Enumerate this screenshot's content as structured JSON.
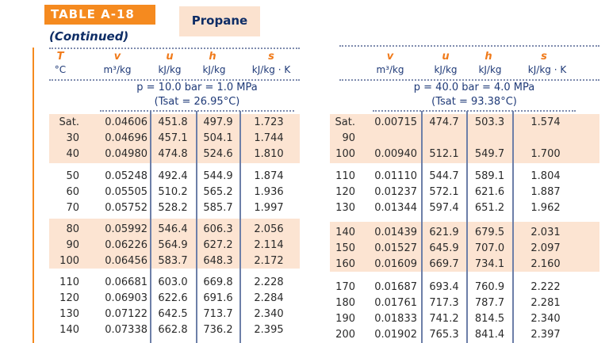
{
  "title_label": "TABLE A-18",
  "substance": "Propane",
  "continued": "(Continued)",
  "left_headers": {
    "T": "T",
    "v": "v",
    "u": "u",
    "h": "h",
    "s": "s",
    "T_unit": "°C",
    "v_unit": "m³/kg",
    "u_unit": "kJ/kg",
    "h_unit": "kJ/kg",
    "s_unit": "kJ/kg · K"
  },
  "right_headers": {
    "v": "v",
    "u": "u",
    "h": "h",
    "s": "s",
    "v_unit": "m³/kg",
    "u_unit": "kJ/kg",
    "h_unit": "kJ/kg",
    "s_unit": "kJ/kg · K"
  },
  "left_block": {
    "pressure": "p = 10.0 bar = 1.0 MPa",
    "tsat": "(Tsat = 26.95°C)",
    "rows": [
      [
        "Sat.",
        "0.04606",
        "451.8",
        "497.9",
        "1.723"
      ],
      [
        "30",
        "0.04696",
        "457.1",
        "504.1",
        "1.744"
      ],
      [
        "40",
        "0.04980",
        "474.8",
        "524.6",
        "1.810"
      ],
      [
        "50",
        "0.05248",
        "492.4",
        "544.9",
        "1.874"
      ],
      [
        "60",
        "0.05505",
        "510.2",
        "565.2",
        "1.936"
      ],
      [
        "70",
        "0.05752",
        "528.2",
        "585.7",
        "1.997"
      ],
      [
        "80",
        "0.05992",
        "546.4",
        "606.3",
        "2.056"
      ],
      [
        "90",
        "0.06226",
        "564.9",
        "627.2",
        "2.114"
      ],
      [
        "100",
        "0.06456",
        "583.7",
        "648.3",
        "2.172"
      ],
      [
        "110",
        "0.06681",
        "603.0",
        "669.8",
        "2.228"
      ],
      [
        "120",
        "0.06903",
        "622.6",
        "691.6",
        "2.284"
      ],
      [
        "130",
        "0.07122",
        "642.5",
        "713.7",
        "2.340"
      ],
      [
        "140",
        "0.07338",
        "662.8",
        "736.2",
        "2.395"
      ]
    ]
  },
  "right_block": {
    "pressure": "p = 40.0 bar = 4.0 MPa",
    "tsat": "(Tsat = 93.38°C)",
    "rows": [
      [
        "Sat.",
        "0.00715",
        "474.7",
        "503.3",
        "1.574"
      ],
      [
        "90",
        "",
        "",
        "",
        ""
      ],
      [
        "100",
        "0.00940",
        "512.1",
        "549.7",
        "1.700"
      ],
      [
        "110",
        "0.01110",
        "544.7",
        "589.1",
        "1.804"
      ],
      [
        "120",
        "0.01237",
        "572.1",
        "621.6",
        "1.887"
      ],
      [
        "130",
        "0.01344",
        "597.4",
        "651.2",
        "1.962"
      ],
      [
        "140",
        "0.01439",
        "621.9",
        "679.5",
        "2.031"
      ],
      [
        "150",
        "0.01527",
        "645.9",
        "707.0",
        "2.097"
      ],
      [
        "160",
        "0.01609",
        "669.7",
        "734.1",
        "2.160"
      ],
      [
        "170",
        "0.01687",
        "693.4",
        "760.9",
        "2.222"
      ],
      [
        "180",
        "0.01761",
        "717.3",
        "787.7",
        "2.281"
      ],
      [
        "190",
        "0.01833",
        "741.2",
        "814.5",
        "2.340"
      ],
      [
        "200",
        "0.01902",
        "765.3",
        "841.4",
        "2.397"
      ]
    ]
  },
  "colors": {
    "orange": "#f58a1f",
    "band": "#fce4d2",
    "navy": "#1f3a78"
  }
}
